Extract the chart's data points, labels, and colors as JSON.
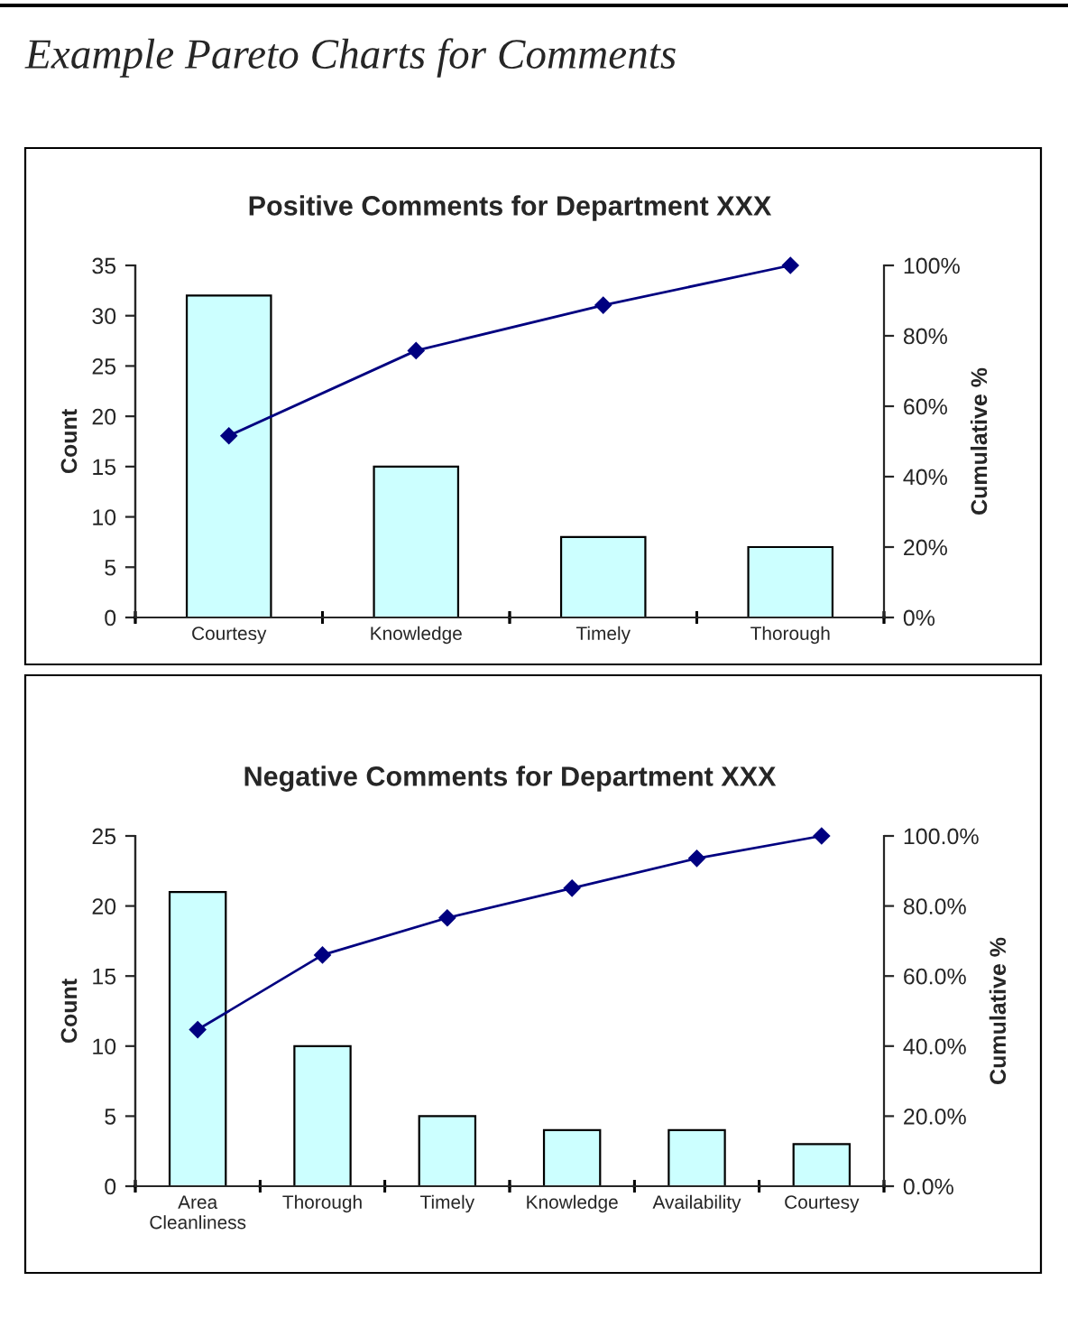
{
  "chart_data": [
    {
      "type": "bar",
      "title": "Positive Comments for Department XXX",
      "annotations": [
        "Example Pareto Charts for Comments"
      ],
      "ylabel": "Count",
      "y2label": "Cumulative %",
      "categories": [
        "Courtesy",
        "Knowledge",
        "Timely",
        "Thorough"
      ],
      "series": [
        {
          "color": "#ccffff",
          "values": [
            32,
            15,
            8,
            7
          ]
        },
        {
          "type": "line",
          "axis": "y2",
          "color": "#000080",
          "values": [
            51.6,
            75.8,
            88.7,
            100
          ]
        }
      ],
      "ylim": [
        0,
        35
      ],
      "yticks": [
        0,
        5,
        10,
        15,
        20,
        25,
        30,
        35
      ],
      "y2lim": [
        0,
        100
      ],
      "y2ticks": [
        {
          "value": 0,
          "label": "0%"
        },
        {
          "value": 20,
          "label": "20%"
        },
        {
          "value": 40,
          "label": "40%"
        },
        {
          "value": 60,
          "label": "60%"
        },
        {
          "value": 80,
          "label": "80%"
        },
        {
          "value": 100,
          "label": "100%"
        }
      ],
      "marker": "diamond",
      "grid": false,
      "legend": false
    },
    {
      "type": "bar",
      "title": "Negative Comments for Department XXX",
      "ylabel": "Count",
      "y2label": "Cumulative %",
      "categories": [
        "Area\nCleanliness",
        "Thorough",
        "Timely",
        "Knowledge",
        "Availability",
        "Courtesy"
      ],
      "series": [
        {
          "color": "#ccffff",
          "values": [
            21,
            10,
            5,
            4,
            4,
            3
          ]
        },
        {
          "type": "line",
          "axis": "y2",
          "color": "#000080",
          "values": [
            44.7,
            66.0,
            76.6,
            85.1,
            93.6,
            100
          ]
        }
      ],
      "ylim": [
        0,
        25
      ],
      "yticks": [
        0,
        5,
        10,
        15,
        20,
        25
      ],
      "y2lim": [
        0,
        100
      ],
      "y2ticks": [
        {
          "value": 0,
          "label": "0.0%"
        },
        {
          "value": 20,
          "label": "20.0%"
        },
        {
          "value": 40,
          "label": "40.0%"
        },
        {
          "value": 60,
          "label": "60.0%"
        },
        {
          "value": 80,
          "label": "80.0%"
        },
        {
          "value": 100,
          "label": "100.0%"
        }
      ],
      "marker": "diamond",
      "grid": false,
      "legend": false
    }
  ]
}
